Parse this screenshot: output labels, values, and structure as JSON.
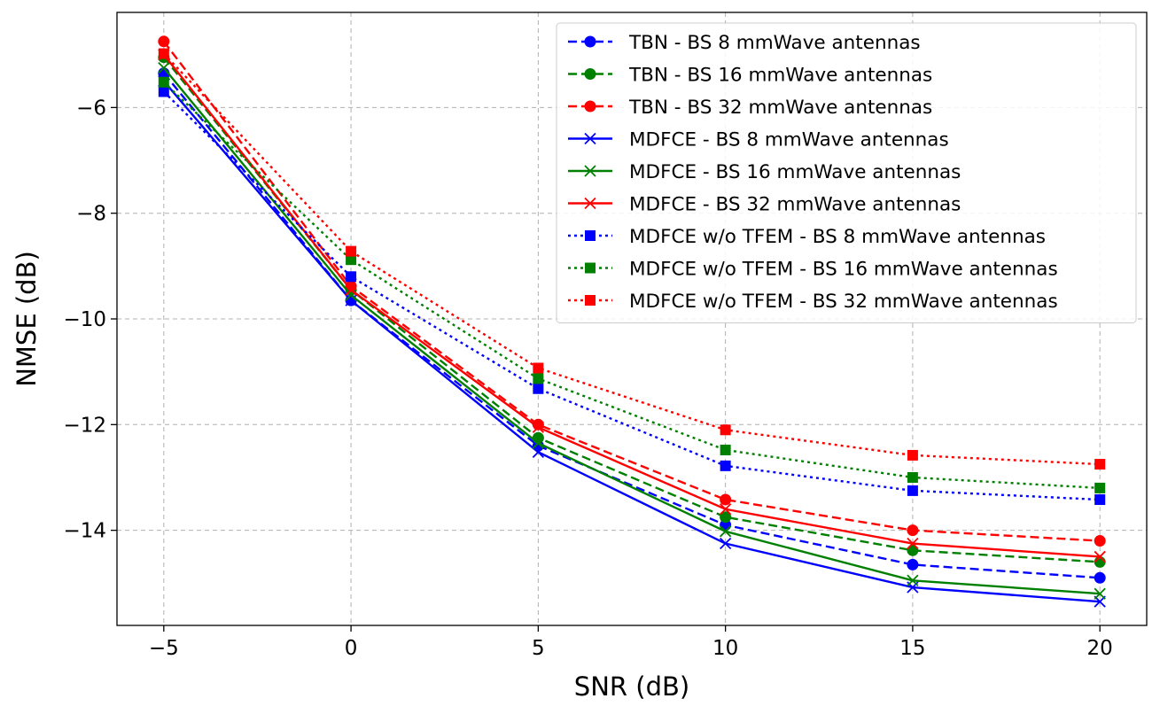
{
  "chart_data": {
    "type": "line",
    "title": "",
    "xlabel": "SNR (dB)",
    "ylabel": "NMSE (dB)",
    "x": [
      -5,
      0,
      5,
      10,
      15,
      20
    ],
    "xlim": [
      -6.25,
      21.25
    ],
    "ylim": [
      -15.8,
      -4.2
    ],
    "xticks": [
      -5,
      0,
      5,
      10,
      15,
      20
    ],
    "xtick_labels": [
      "−5",
      "0",
      "5",
      "10",
      "15",
      "20"
    ],
    "yticks": [
      -6,
      -8,
      -10,
      -12,
      -14
    ],
    "ytick_labels": [
      "−6",
      "−8",
      "−10",
      "−12",
      "−14"
    ],
    "grid": true,
    "legend_position": "top-right",
    "series": [
      {
        "name": "TBN - BS 8 mmWave antennas",
        "color": "#0000ff",
        "line": "dashed",
        "marker": "circle",
        "values": [
          -5.35,
          -9.65,
          -12.4,
          -13.9,
          -14.65,
          -14.9
        ]
      },
      {
        "name": "TBN - BS 16 mmWave antennas",
        "color": "#008000",
        "line": "dashed",
        "marker": "circle",
        "values": [
          -5.05,
          -9.45,
          -12.25,
          -13.75,
          -14.38,
          -14.6
        ]
      },
      {
        "name": "TBN - BS 32 mmWave antennas",
        "color": "#ff0000",
        "line": "dashed",
        "marker": "circle",
        "values": [
          -4.75,
          -9.38,
          -12.0,
          -13.42,
          -14.0,
          -14.2
        ]
      },
      {
        "name": "MDFCE - BS 8 mmWave antennas",
        "color": "#0000ff",
        "line": "solid",
        "marker": "x",
        "values": [
          -5.5,
          -9.65,
          -12.52,
          -14.25,
          -15.08,
          -15.35
        ]
      },
      {
        "name": "MDFCE - BS 16 mmWave antennas",
        "color": "#008000",
        "line": "solid",
        "marker": "x",
        "values": [
          -5.25,
          -9.55,
          -12.35,
          -14.02,
          -14.95,
          -15.2
        ]
      },
      {
        "name": "MDFCE - BS 32 mmWave antennas",
        "color": "#ff0000",
        "line": "solid",
        "marker": "x",
        "values": [
          -5.0,
          -9.45,
          -12.05,
          -13.6,
          -14.25,
          -14.5
        ]
      },
      {
        "name": "MDFCE w/o TFEM - BS 8 mmWave antennas",
        "color": "#0000ff",
        "line": "dotted",
        "marker": "square",
        "values": [
          -5.7,
          -9.2,
          -11.32,
          -12.78,
          -13.25,
          -13.42
        ]
      },
      {
        "name": "MDFCE w/o TFEM - BS 16 mmWave antennas",
        "color": "#008000",
        "line": "dotted",
        "marker": "square",
        "values": [
          -5.52,
          -8.88,
          -11.13,
          -12.48,
          -13.0,
          -13.2
        ]
      },
      {
        "name": "MDFCE w/o TFEM - BS 32 mmWave antennas",
        "color": "#ff0000",
        "line": "dotted",
        "marker": "square",
        "values": [
          -4.98,
          -8.72,
          -10.93,
          -12.1,
          -12.58,
          -12.75
        ]
      }
    ]
  }
}
